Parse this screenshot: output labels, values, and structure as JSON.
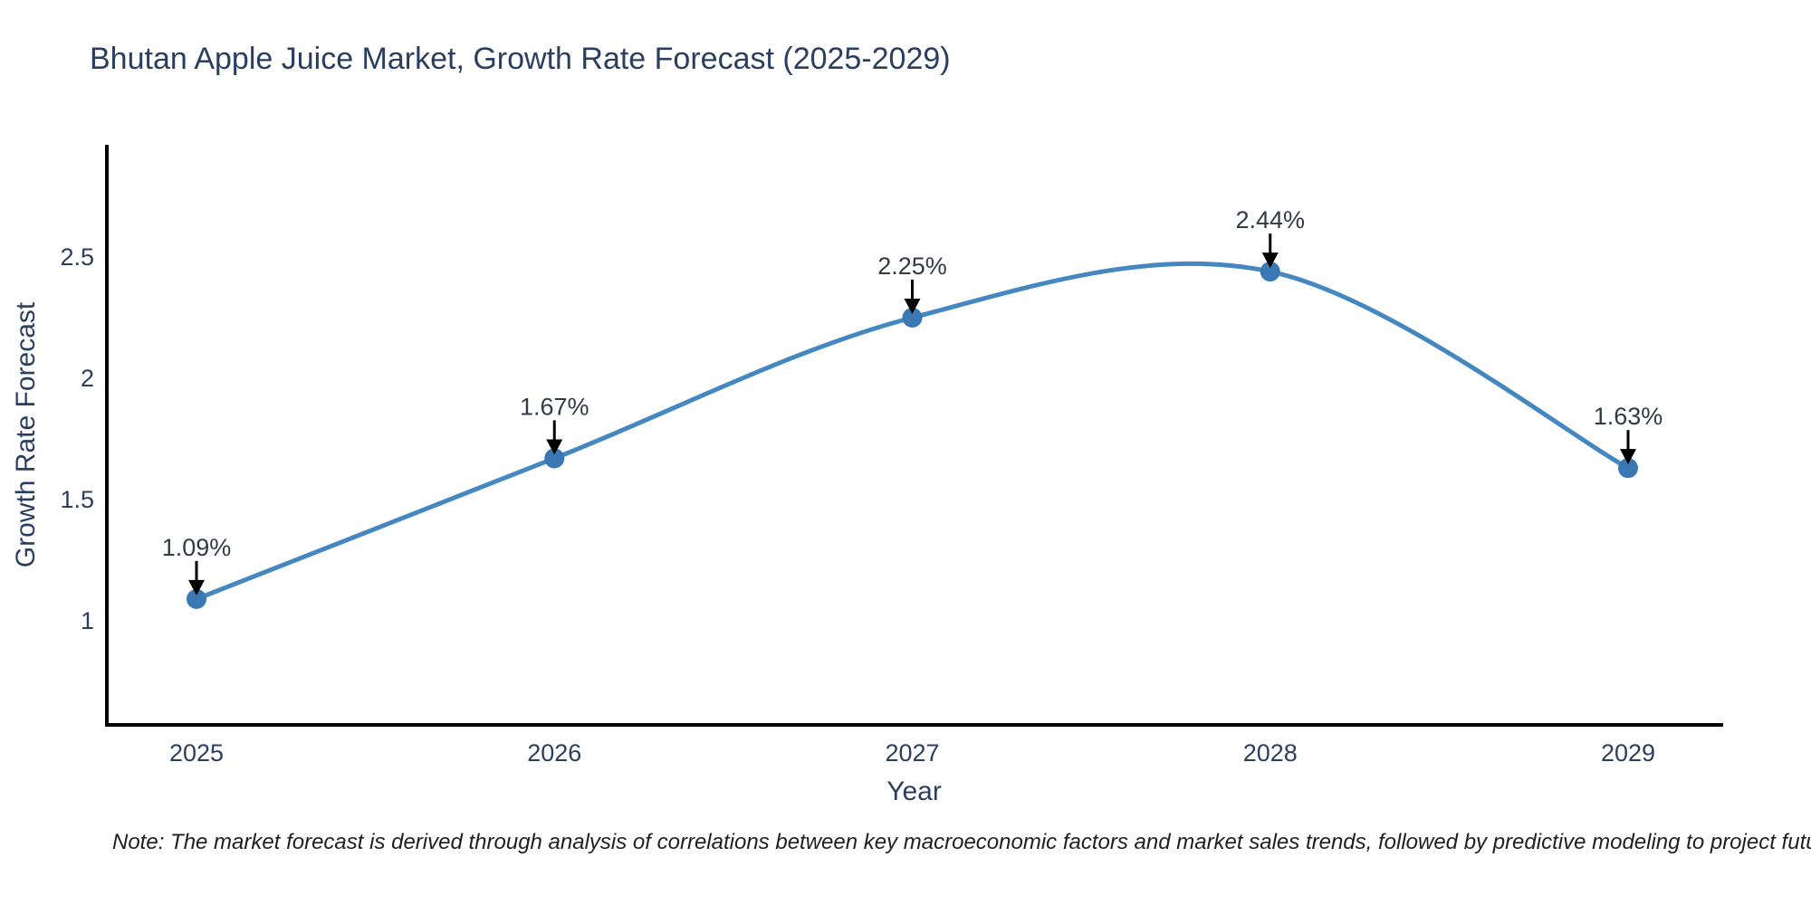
{
  "title": "Bhutan Apple Juice Market, Growth Rate Forecast (2025-2029)",
  "note": "Note: The market forecast is derived through analysis of correlations between key macroeconomic factors and market sales trends, followed by predictive modeling to project future sales",
  "chart_data": {
    "type": "line",
    "title": "Bhutan Apple Juice Market, Growth Rate Forecast (2025-2029)",
    "xlabel": "Year",
    "ylabel": "Growth Rate Forecast",
    "categories": [
      "2025",
      "2026",
      "2027",
      "2028",
      "2029"
    ],
    "series": [
      {
        "name": "Growth Rate Forecast",
        "values": [
          1.09,
          1.67,
          2.25,
          2.44,
          1.63
        ]
      }
    ],
    "point_labels": [
      "1.09%",
      "1.67%",
      "2.25%",
      "2.44%",
      "1.63%"
    ],
    "yticks": [
      1,
      1.5,
      2,
      2.5
    ],
    "ylim": [
      0.66,
      2.97
    ],
    "grid": false,
    "legend": "none",
    "line_shape": "spline",
    "colors": {
      "line": "#4487c1",
      "marker": "#3a78b4",
      "axis": "#000000",
      "tick_label": "#2a3f5f",
      "axis_title": "#2a3f5f",
      "annotation_text": "#333a45",
      "annotation_arrow": "#000000"
    }
  }
}
